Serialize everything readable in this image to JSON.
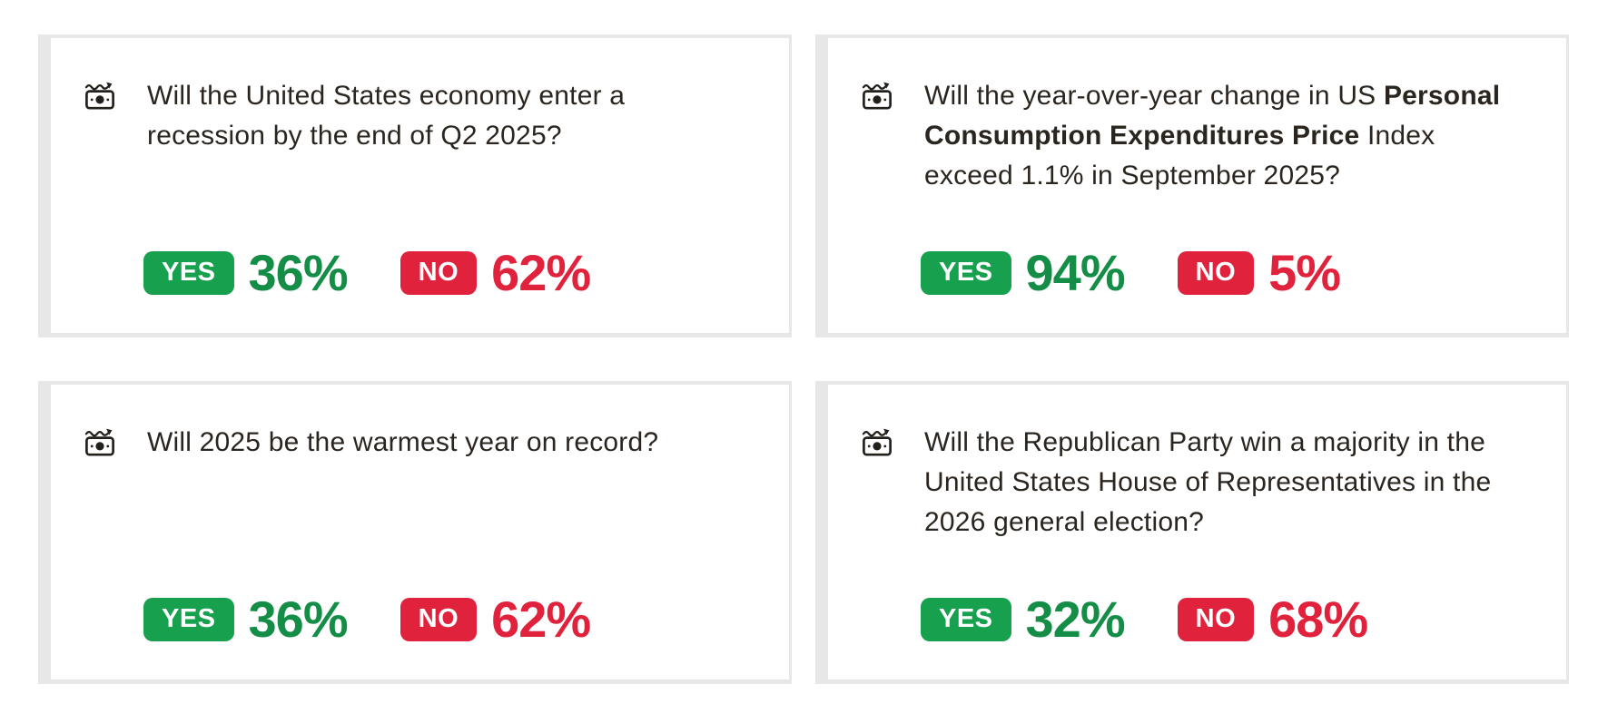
{
  "colors": {
    "yes_badge": "#17A04E",
    "no_badge": "#E0223C",
    "yes_text": "#148D47",
    "no_text": "#E0223C",
    "card_border": "#E7E7E7",
    "question_text": "#2B2520"
  },
  "outcome_labels": {
    "yes": "YES",
    "no": "NO"
  },
  "cards": [
    {
      "icon": "money-trend-icon",
      "question_segments": [
        {
          "text": "Will the United States economy enter a recession by the end of Q2 2025?",
          "bold": false
        }
      ],
      "yes_value": "36%",
      "no_value": "62%"
    },
    {
      "icon": "money-trend-icon",
      "question_segments": [
        {
          "text": "Will the year-over-year change in US ",
          "bold": false
        },
        {
          "text": "Personal Consumption Expenditures Price",
          "bold": true
        },
        {
          "text": " Index exceed 1.1% in September 2025?",
          "bold": false
        }
      ],
      "yes_value": "94%",
      "no_value": "5%"
    },
    {
      "icon": "money-trend-icon",
      "question_segments": [
        {
          "text": "Will 2025 be the warmest year on record?",
          "bold": false
        }
      ],
      "yes_value": "36%",
      "no_value": "62%"
    },
    {
      "icon": "money-trend-icon",
      "question_segments": [
        {
          "text": "Will the Republican Party win a majority in the United States House of Representatives in the 2026 general election?",
          "bold": false
        }
      ],
      "yes_value": "32%",
      "no_value": "68%"
    }
  ]
}
